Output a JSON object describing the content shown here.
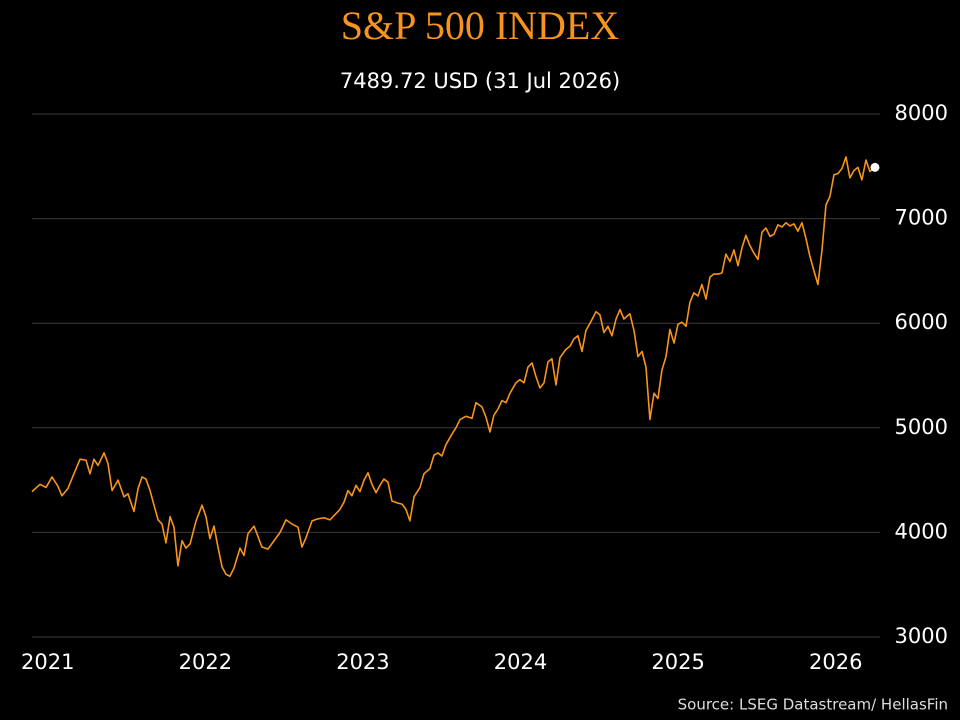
{
  "chart_data": {
    "type": "line",
    "title": "S&P 500 INDEX",
    "subtitle": "7489.72 USD (31 Jul 2026)",
    "source": "Source: LSEG Datastream/ HellasFin",
    "color": "#f7941d",
    "last_point_color": "#ffffff",
    "grid": true,
    "xlim": [
      2020.9,
      2026.281
    ],
    "xticks": [
      2021,
      2022,
      2023,
      2024,
      2025,
      2026
    ],
    "ylim": [
      3000,
      8000
    ],
    "yticks": [
      3000,
      4000,
      5000,
      6000,
      7000,
      8000
    ],
    "x": [
      2020.9,
      2020.951,
      2020.989,
      2021.027,
      2021.065,
      2021.09,
      2021.128,
      2021.166,
      2021.205,
      2021.243,
      2021.268,
      2021.293,
      2021.319,
      2021.357,
      2021.382,
      2021.408,
      2021.446,
      2021.484,
      2021.509,
      2021.547,
      2021.573,
      2021.598,
      2021.623,
      2021.649,
      2021.674,
      2021.7,
      2021.725,
      2021.75,
      2021.776,
      2021.801,
      2021.826,
      2021.852,
      2021.877,
      2021.903,
      2021.941,
      2021.979,
      2022.004,
      2022.029,
      2022.055,
      2022.08,
      2022.106,
      2022.131,
      2022.156,
      2022.182,
      2022.22,
      2022.245,
      2022.271,
      2022.309,
      2022.334,
      2022.359,
      2022.397,
      2022.436,
      2022.474,
      2022.512,
      2022.55,
      2022.588,
      2022.613,
      2022.639,
      2022.677,
      2022.715,
      2022.753,
      2022.791,
      2022.829,
      2022.854,
      2022.88,
      2022.905,
      2022.93,
      2022.956,
      2022.981,
      2023.007,
      2023.032,
      2023.057,
      2023.083,
      2023.108,
      2023.133,
      2023.159,
      2023.184,
      2023.222,
      2023.248,
      2023.273,
      2023.298,
      2023.324,
      2023.362,
      2023.387,
      2023.425,
      2023.451,
      2023.476,
      2023.501,
      2023.527,
      2023.565,
      2023.59,
      2023.616,
      2023.654,
      2023.692,
      2023.717,
      2023.755,
      2023.781,
      2023.806,
      2023.831,
      2023.857,
      2023.882,
      2023.908,
      2023.933,
      2023.971,
      2023.996,
      2024.022,
      2024.047,
      2024.073,
      2024.098,
      2024.123,
      2024.149,
      2024.174,
      2024.199,
      2024.225,
      2024.25,
      2024.288,
      2024.314,
      2024.339,
      2024.364,
      2024.39,
      2024.415,
      2024.441,
      2024.479,
      2024.504,
      2024.529,
      2024.555,
      2024.58,
      2024.606,
      2024.631,
      2024.656,
      2024.694,
      2024.72,
      2024.745,
      2024.771,
      2024.796,
      2024.821,
      2024.847,
      2024.872,
      2024.897,
      2024.923,
      2024.948,
      2024.974,
      2024.999,
      2025.024,
      2025.05,
      2025.075,
      2025.1,
      2025.126,
      2025.151,
      2025.177,
      2025.202,
      2025.227,
      2025.253,
      2025.278,
      2025.303,
      2025.329,
      2025.354,
      2025.38,
      2025.405,
      2025.43,
      2025.456,
      2025.481,
      2025.507,
      2025.532,
      2025.557,
      2025.583,
      2025.608,
      2025.633,
      2025.659,
      2025.684,
      2025.71,
      2025.735,
      2025.76,
      2025.786,
      2025.811,
      2025.836,
      2025.862,
      2025.887,
      2025.913,
      2025.938,
      2025.963,
      2025.989,
      2026.014,
      2026.04,
      2026.065,
      2026.09,
      2026.116,
      2026.141,
      2026.166,
      2026.192,
      2026.217,
      2026.249
    ],
    "values": [
      4390,
      4460,
      4430,
      4530,
      4440,
      4350,
      4420,
      4560,
      4700,
      4690,
      4560,
      4700,
      4640,
      4760,
      4660,
      4400,
      4500,
      4340,
      4370,
      4200,
      4420,
      4530,
      4510,
      4400,
      4260,
      4120,
      4080,
      3900,
      4150,
      4050,
      3680,
      3920,
      3850,
      3890,
      4110,
      4260,
      4150,
      3940,
      4060,
      3860,
      3670,
      3600,
      3580,
      3660,
      3850,
      3780,
      3990,
      4060,
      3960,
      3860,
      3840,
      3920,
      4000,
      4120,
      4080,
      4050,
      3860,
      3950,
      4110,
      4130,
      4140,
      4120,
      4180,
      4220,
      4290,
      4400,
      4350,
      4450,
      4390,
      4500,
      4570,
      4460,
      4380,
      4450,
      4510,
      4480,
      4300,
      4280,
      4270,
      4220,
      4110,
      4340,
      4430,
      4560,
      4610,
      4740,
      4760,
      4730,
      4840,
      4940,
      5000,
      5080,
      5110,
      5090,
      5240,
      5200,
      5100,
      4960,
      5120,
      5180,
      5260,
      5240,
      5330,
      5430,
      5460,
      5430,
      5580,
      5620,
      5490,
      5380,
      5430,
      5630,
      5660,
      5410,
      5670,
      5750,
      5780,
      5850,
      5880,
      5730,
      5930,
      6000,
      6110,
      6080,
      5910,
      5970,
      5880,
      6040,
      6130,
      6040,
      6090,
      5930,
      5680,
      5730,
      5580,
      5080,
      5330,
      5280,
      5550,
      5680,
      5940,
      5810,
      5990,
      6010,
      5970,
      6200,
      6290,
      6260,
      6370,
      6230,
      6440,
      6470,
      6470,
      6480,
      6660,
      6590,
      6700,
      6550,
      6720,
      6840,
      6740,
      6670,
      6610,
      6870,
      6910,
      6830,
      6850,
      6940,
      6920,
      6960,
      6930,
      6950,
      6880,
      6960,
      6810,
      6640,
      6500,
      6370,
      6700,
      7130,
      7210,
      7420,
      7430,
      7480,
      7590,
      7390,
      7460,
      7490,
      7370,
      7560,
      7450,
      7489.72
    ]
  }
}
